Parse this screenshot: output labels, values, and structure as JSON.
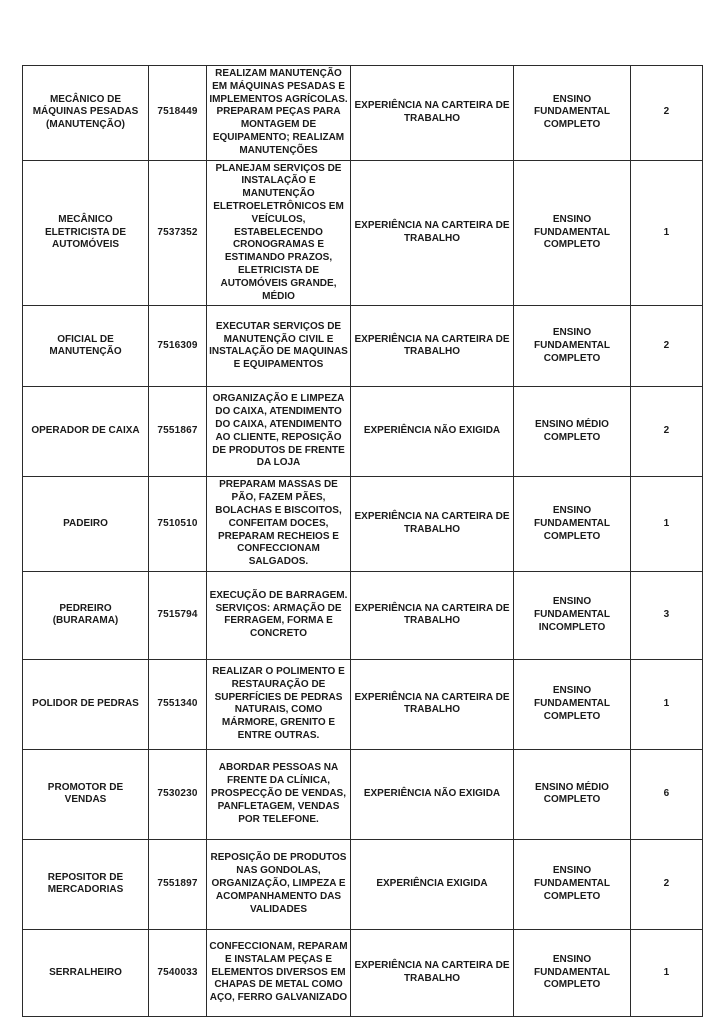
{
  "style": {
    "page_background": "#ffffff",
    "text_color": "#1a1a1a",
    "border_color": "#2b2b2b"
  },
  "table": {
    "rows": [
      {
        "title": "MECÂNICO DE MÁQUINAS PESADAS (MANUTENÇÃO)",
        "code": "7518449",
        "description": "REALIZAM MANUTENÇÃO EM MÁQUINAS PESADAS E IMPLEMENTOS AGRÍCOLAS. PREPARAM PEÇAS PARA MONTAGEM DE EQUIPAMENTO; REALIZAM MANUTENÇÕES",
        "experience": "EXPERIÊNCIA NA CARTEIRA DE TRABALHO",
        "education": "ENSINO FUNDAMENTAL COMPLETO",
        "vacancies": "2"
      },
      {
        "title": "MECÂNICO ELETRICISTA DE AUTOMÓVEIS",
        "code": "7537352",
        "description": "PLANEJAM SERVIÇOS DE INSTALAÇÃO E MANUTENÇÃO ELETROELETRÔNICOS EM VEÍCULOS, ESTABELECENDO CRONOGRAMAS E ESTIMANDO PRAZOS, ELETRICISTA DE AUTOMÓVEIS GRANDE, MÉDIO",
        "experience": "EXPERIÊNCIA NA CARTEIRA DE TRABALHO",
        "education": "ENSINO FUNDAMENTAL COMPLETO",
        "vacancies": "1"
      },
      {
        "title": "OFICIAL DE MANUTENÇÃO",
        "code": "7516309",
        "description": "EXECUTAR SERVIÇOS DE MANUTENÇÃO CIVIL E INSTALAÇÃO DE MAQUINAS E EQUIPAMENTOS",
        "experience": "EXPERIÊNCIA NA CARTEIRA DE TRABALHO",
        "education": "ENSINO FUNDAMENTAL COMPLETO",
        "vacancies": "2"
      },
      {
        "title": "OPERADOR DE CAIXA",
        "code": "7551867",
        "description": "ORGANIZAÇÃO E LIMPEZA DO CAIXA, ATENDIMENTO DO CAIXA, ATENDIMENTO AO CLIENTE, REPOSIÇÃO DE PRODUTOS DE FRENTE DA LOJA",
        "experience": "EXPERIÊNCIA NÃO EXIGIDA",
        "education": "ENSINO MÉDIO COMPLETO",
        "vacancies": "2"
      },
      {
        "title": "PADEIRO",
        "code": "7510510",
        "description": "PREPARAM MASSAS DE PÃO, FAZEM PÃES, BOLACHAS E BISCOITOS, CONFEITAM DOCES, PREPARAM RECHEIOS E CONFECCIONAM SALGADOS.",
        "experience": "EXPERIÊNCIA NA CARTEIRA DE TRABALHO",
        "education": "ENSINO FUNDAMENTAL COMPLETO",
        "vacancies": "1"
      },
      {
        "title": "PEDREIRO (BURARAMA)",
        "code": "7515794",
        "description": "EXECUÇÃO DE BARRAGEM. SERVIÇOS: ARMAÇÃO DE FERRAGEM, FORMA E CONCRETO",
        "experience": "EXPERIÊNCIA NA CARTEIRA DE TRABALHO",
        "education": "ENSINO FUNDAMENTAL INCOMPLETO",
        "vacancies": "3"
      },
      {
        "title": "POLIDOR DE PEDRAS",
        "code": "7551340",
        "description": "REALIZAR O POLIMENTO E RESTAURAÇÃO DE SUPERFÍCIES DE PEDRAS NATURAIS, COMO MÁRMORE, GRENITO E ENTRE OUTRAS.",
        "experience": "EXPERIÊNCIA NA CARTEIRA DE TRABALHO",
        "education": "ENSINO FUNDAMENTAL COMPLETO",
        "vacancies": "1"
      },
      {
        "title": "PROMOTOR DE VENDAS",
        "code": "7530230",
        "description": "ABORDAR PESSOAS NA FRENTE DA CLÍNICA, PROSPECÇÃO DE VENDAS, PANFLETAGEM, VENDAS POR TELEFONE.",
        "experience": "EXPERIÊNCIA NÃO EXIGIDA",
        "education": "ENSINO MÉDIO COMPLETO",
        "vacancies": "6"
      },
      {
        "title": "REPOSITOR DE MERCADORIAS",
        "code": "7551897",
        "description": "REPOSIÇÃO DE PRODUTOS NAS GONDOLAS, ORGANIZAÇÃO, LIMPEZA E ACOMPANHAMENTO DAS VALIDADES",
        "experience": "EXPERIÊNCIA EXIGIDA",
        "education": "ENSINO FUNDAMENTAL COMPLETO",
        "vacancies": "2"
      },
      {
        "title": "SERRALHEIRO",
        "code": "7540033",
        "description": "CONFECCIONAM, REPARAM E INSTALAM PEÇAS E ELEMENTOS DIVERSOS EM CHAPAS DE METAL COMO AÇO, FERRO GALVANIZADO",
        "experience": "EXPERIÊNCIA NA CARTEIRA DE TRABALHO",
        "education": "ENSINO FUNDAMENTAL COMPLETO",
        "vacancies": "1"
      }
    ]
  }
}
